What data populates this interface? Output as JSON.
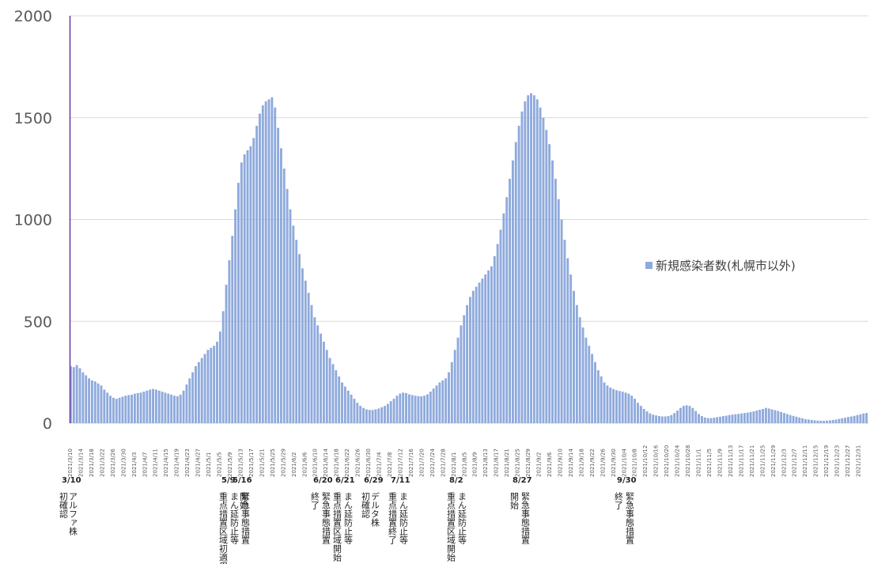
{
  "chart_data": {
    "type": "bar",
    "title": "",
    "xlabel": "",
    "ylabel": "",
    "ylim": [
      0,
      2000
    ],
    "yticks": [
      0,
      500,
      1000,
      1500,
      2000
    ],
    "grid": true,
    "legend_position": "right",
    "bar_color": "#8faadc",
    "series": [
      {
        "name": "新規感染者数(札幌市以外)",
        "values": [
          280,
          275,
          285,
          270,
          250,
          235,
          220,
          210,
          205,
          195,
          185,
          165,
          150,
          135,
          125,
          120,
          125,
          130,
          135,
          138,
          140,
          145,
          148,
          150,
          155,
          160,
          165,
          168,
          165,
          160,
          155,
          150,
          145,
          140,
          135,
          132,
          140,
          160,
          190,
          220,
          250,
          280,
          300,
          320,
          340,
          360,
          370,
          380,
          400,
          450,
          550,
          680,
          800,
          920,
          1050,
          1180,
          1280,
          1320,
          1340,
          1360,
          1400,
          1460,
          1520,
          1560,
          1580,
          1590,
          1600,
          1550,
          1450,
          1350,
          1250,
          1150,
          1050,
          970,
          900,
          830,
          760,
          700,
          640,
          580,
          520,
          480,
          440,
          400,
          360,
          320,
          290,
          260,
          230,
          200,
          180,
          160,
          140,
          120,
          100,
          85,
          75,
          68,
          65,
          65,
          68,
          72,
          78,
          85,
          95,
          108,
          120,
          135,
          145,
          150,
          148,
          142,
          138,
          135,
          133,
          132,
          135,
          142,
          155,
          170,
          185,
          200,
          210,
          220,
          250,
          300,
          360,
          420,
          480,
          530,
          580,
          620,
          650,
          670,
          690,
          710,
          730,
          750,
          770,
          820,
          880,
          950,
          1030,
          1110,
          1200,
          1290,
          1380,
          1460,
          1530,
          1580,
          1610,
          1620,
          1610,
          1590,
          1550,
          1500,
          1440,
          1370,
          1290,
          1200,
          1100,
          1000,
          900,
          810,
          730,
          650,
          580,
          520,
          470,
          420,
          380,
          340,
          300,
          260,
          230,
          200,
          185,
          175,
          168,
          162,
          158,
          155,
          150,
          145,
          135,
          120,
          100,
          85,
          70,
          58,
          48,
          42,
          38,
          35,
          33,
          33,
          35,
          40,
          50,
          62,
          75,
          85,
          88,
          85,
          75,
          60,
          45,
          35,
          28,
          25,
          25,
          27,
          30,
          32,
          35,
          37,
          40,
          42,
          44,
          46,
          48,
          50,
          52,
          55,
          58,
          62,
          66,
          70,
          75,
          72,
          68,
          64,
          60,
          55,
          50,
          45,
          40,
          36,
          32,
          28,
          24,
          20,
          18,
          16,
          14,
          13,
          12,
          12,
          13,
          14,
          16,
          18,
          21,
          24,
          27,
          30,
          33,
          36,
          40,
          44,
          48,
          50
        ]
      }
    ],
    "x_tick_labels": [
      "2021/3/10",
      "2021/3/14",
      "2021/3/18",
      "2021/3/22",
      "2021/3/26",
      "2021/3/30",
      "2021/4/3",
      "2021/4/7",
      "2021/4/11",
      "2021/4/15",
      "2021/4/19",
      "2021/4/23",
      "2021/4/27",
      "2021/5/1",
      "2021/5/5",
      "2021/5/9",
      "2021/5/13",
      "2021/5/17",
      "2021/5/21",
      "2021/5/25",
      "2021/5/29",
      "2021/6/2",
      "2021/6/6",
      "2021/6/10",
      "2021/6/14",
      "2021/6/18",
      "2021/6/22",
      "2021/6/26",
      "2021/6/30",
      "2021/7/4",
      "2021/7/8",
      "2021/7/12",
      "2021/7/16",
      "2021/7/20",
      "2021/7/24",
      "2021/7/28",
      "2021/8/1",
      "2021/8/5",
      "2021/8/9",
      "2021/8/13",
      "2021/8/17",
      "2021/8/21",
      "2021/8/25",
      "2021/8/29",
      "2021/9/2",
      "2021/9/6",
      "2021/9/10",
      "2021/9/14",
      "2021/9/18",
      "2021/9/22",
      "2021/9/26",
      "2021/9/30",
      "2021/10/4",
      "2021/10/8",
      "2021/10/12",
      "2021/10/16",
      "2021/10/20",
      "2021/10/24",
      "2021/10/28",
      "2021/11/1",
      "2021/11/5",
      "2021/11/9",
      "2021/11/13",
      "2021/11/17",
      "2021/11/21",
      "2021/11/25",
      "2021/11/29",
      "2021/12/3",
      "2021/12/7",
      "2021/12/11",
      "2021/12/15",
      "2021/12/19",
      "2021/12/23",
      "2021/12/27",
      "2021/12/31"
    ],
    "annotations": [
      {
        "date": "3/10",
        "lines": [
          "初確認",
          "アルファ株"
        ]
      },
      {
        "date": "5/9",
        "lines": [
          "重点措置区域初適用"
        ]
      },
      {
        "date": "5/16",
        "lines": [
          "まん延防止等",
          "開始"
        ]
      },
      {
        "date": "",
        "lines": [
          "緊急事態措置"
        ]
      },
      {
        "date": "6/20",
        "lines": [
          "終了"
        ]
      },
      {
        "date": "",
        "lines": [
          "緊急事態措置"
        ]
      },
      {
        "date": "6/21",
        "lines": [
          "重点措置区域開始"
        ]
      },
      {
        "date": "",
        "lines": [
          "まん延防止等"
        ]
      },
      {
        "date": "6/29",
        "lines": [
          "初確認",
          "デルタ株"
        ]
      },
      {
        "date": "7/11",
        "lines": [
          "重点措置終了"
        ]
      },
      {
        "date": "",
        "lines": [
          "まん延防止等"
        ]
      },
      {
        "date": "8/2",
        "lines": [
          "重点措置区域開始"
        ]
      },
      {
        "date": "",
        "lines": [
          "まん延防止等"
        ]
      },
      {
        "date": "8/27",
        "lines": [
          "開始"
        ]
      },
      {
        "date": "",
        "lines": [
          "緊急事態措置"
        ]
      },
      {
        "date": "9/30",
        "lines": [
          "終了"
        ]
      },
      {
        "date": "",
        "lines": [
          "緊急事態措置"
        ]
      }
    ]
  }
}
